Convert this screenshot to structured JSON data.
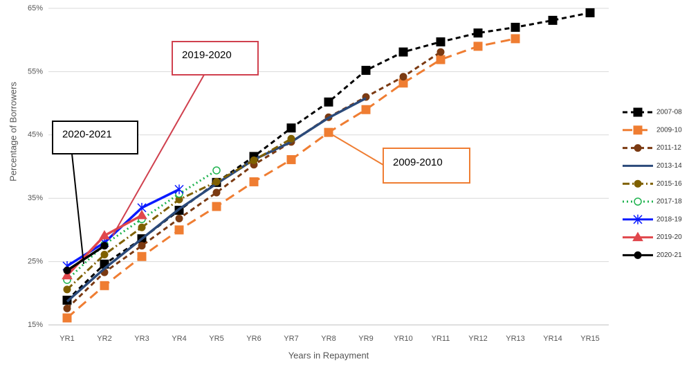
{
  "chart_data": {
    "type": "line",
    "y_label": "Percentage of Borrowers",
    "x_label": "Years in Repayment",
    "categories": [
      "YR1",
      "YR2",
      "YR3",
      "YR4",
      "YR5",
      "YR6",
      "YR7",
      "YR8",
      "YR9",
      "YR10",
      "YR11",
      "YR12",
      "YR13",
      "YR14",
      "YR15"
    ],
    "ylim": [
      15,
      65
    ],
    "yticks": [
      {
        "value": 15,
        "label": "15%"
      },
      {
        "value": 25,
        "label": "25%"
      },
      {
        "value": 35,
        "label": "35%"
      },
      {
        "value": 45,
        "label": "45%"
      },
      {
        "value": 55,
        "label": "55%"
      },
      {
        "value": 65,
        "label": "65%"
      }
    ],
    "grid": true,
    "legend": "right",
    "series": [
      {
        "name": "2007-08",
        "color": "#000000",
        "dash": "dash",
        "marker": "square",
        "values": [
          18.9,
          24.6,
          28.6,
          33.1,
          37.5,
          41.6,
          46.1,
          50.2,
          55.2,
          58.1,
          59.7,
          61.1,
          62.0,
          63.1,
          64.3
        ]
      },
      {
        "name": "2009-10",
        "color": "#ef7d32",
        "dash": "longdash",
        "marker": "square",
        "values": [
          16.1,
          21.2,
          25.8,
          30.0,
          33.7,
          37.6,
          41.1,
          45.4,
          49.0,
          53.2,
          56.9,
          59.0,
          60.2,
          null,
          null
        ]
      },
      {
        "name": "2011-12",
        "color": "#7b3a12",
        "dash": "dash",
        "marker": "circle",
        "values": [
          17.6,
          23.3,
          27.5,
          31.8,
          35.9,
          40.3,
          43.9,
          47.8,
          51.0,
          54.2,
          58.1,
          null,
          null,
          null,
          null
        ]
      },
      {
        "name": "2013-14",
        "color": "#2b4a7a",
        "dash": "solid",
        "marker": "none",
        "values": [
          18.7,
          23.9,
          28.6,
          33.3,
          37.3,
          41.1,
          43.9,
          47.7,
          50.8,
          null,
          null,
          null,
          null,
          null,
          null
        ]
      },
      {
        "name": "2015-16",
        "color": "#7f6000",
        "dash": "dashdot",
        "marker": "circle",
        "values": [
          20.6,
          26.1,
          30.4,
          34.8,
          37.6,
          41.0,
          44.4,
          null,
          null,
          null,
          null,
          null,
          null,
          null,
          null
        ]
      },
      {
        "name": "2017-18",
        "color": "#1fb34f",
        "dash": "dot",
        "marker": "ring",
        "values": [
          22.1,
          27.7,
          31.7,
          35.7,
          39.4,
          null,
          null,
          null,
          null,
          null,
          null,
          null,
          null,
          null,
          null
        ]
      },
      {
        "name": "2018-19",
        "color": "#0a1aff",
        "dash": "solid",
        "marker": "star",
        "values": [
          24.3,
          28.0,
          33.5,
          36.4,
          null,
          null,
          null,
          null,
          null,
          null,
          null,
          null,
          null,
          null,
          null
        ]
      },
      {
        "name": "2019-20",
        "color": "#e0474c",
        "dash": "solid",
        "marker": "triangle",
        "values": [
          22.8,
          29.1,
          32.3,
          null,
          null,
          null,
          null,
          null,
          null,
          null,
          null,
          null,
          null,
          null,
          null
        ]
      },
      {
        "name": "2020-21",
        "color": "#000000",
        "dash": "solid",
        "marker": "circle",
        "values": [
          23.6,
          27.5,
          null,
          null,
          null,
          null,
          null,
          null,
          null,
          null,
          null,
          null,
          null,
          null,
          null
        ]
      }
    ],
    "annotations": [
      {
        "text": "2019-2020",
        "color": "#d0404e"
      },
      {
        "text": "2020-2021",
        "color": "#000000"
      },
      {
        "text": "2009-2010",
        "color": "#ef7d32"
      }
    ]
  }
}
